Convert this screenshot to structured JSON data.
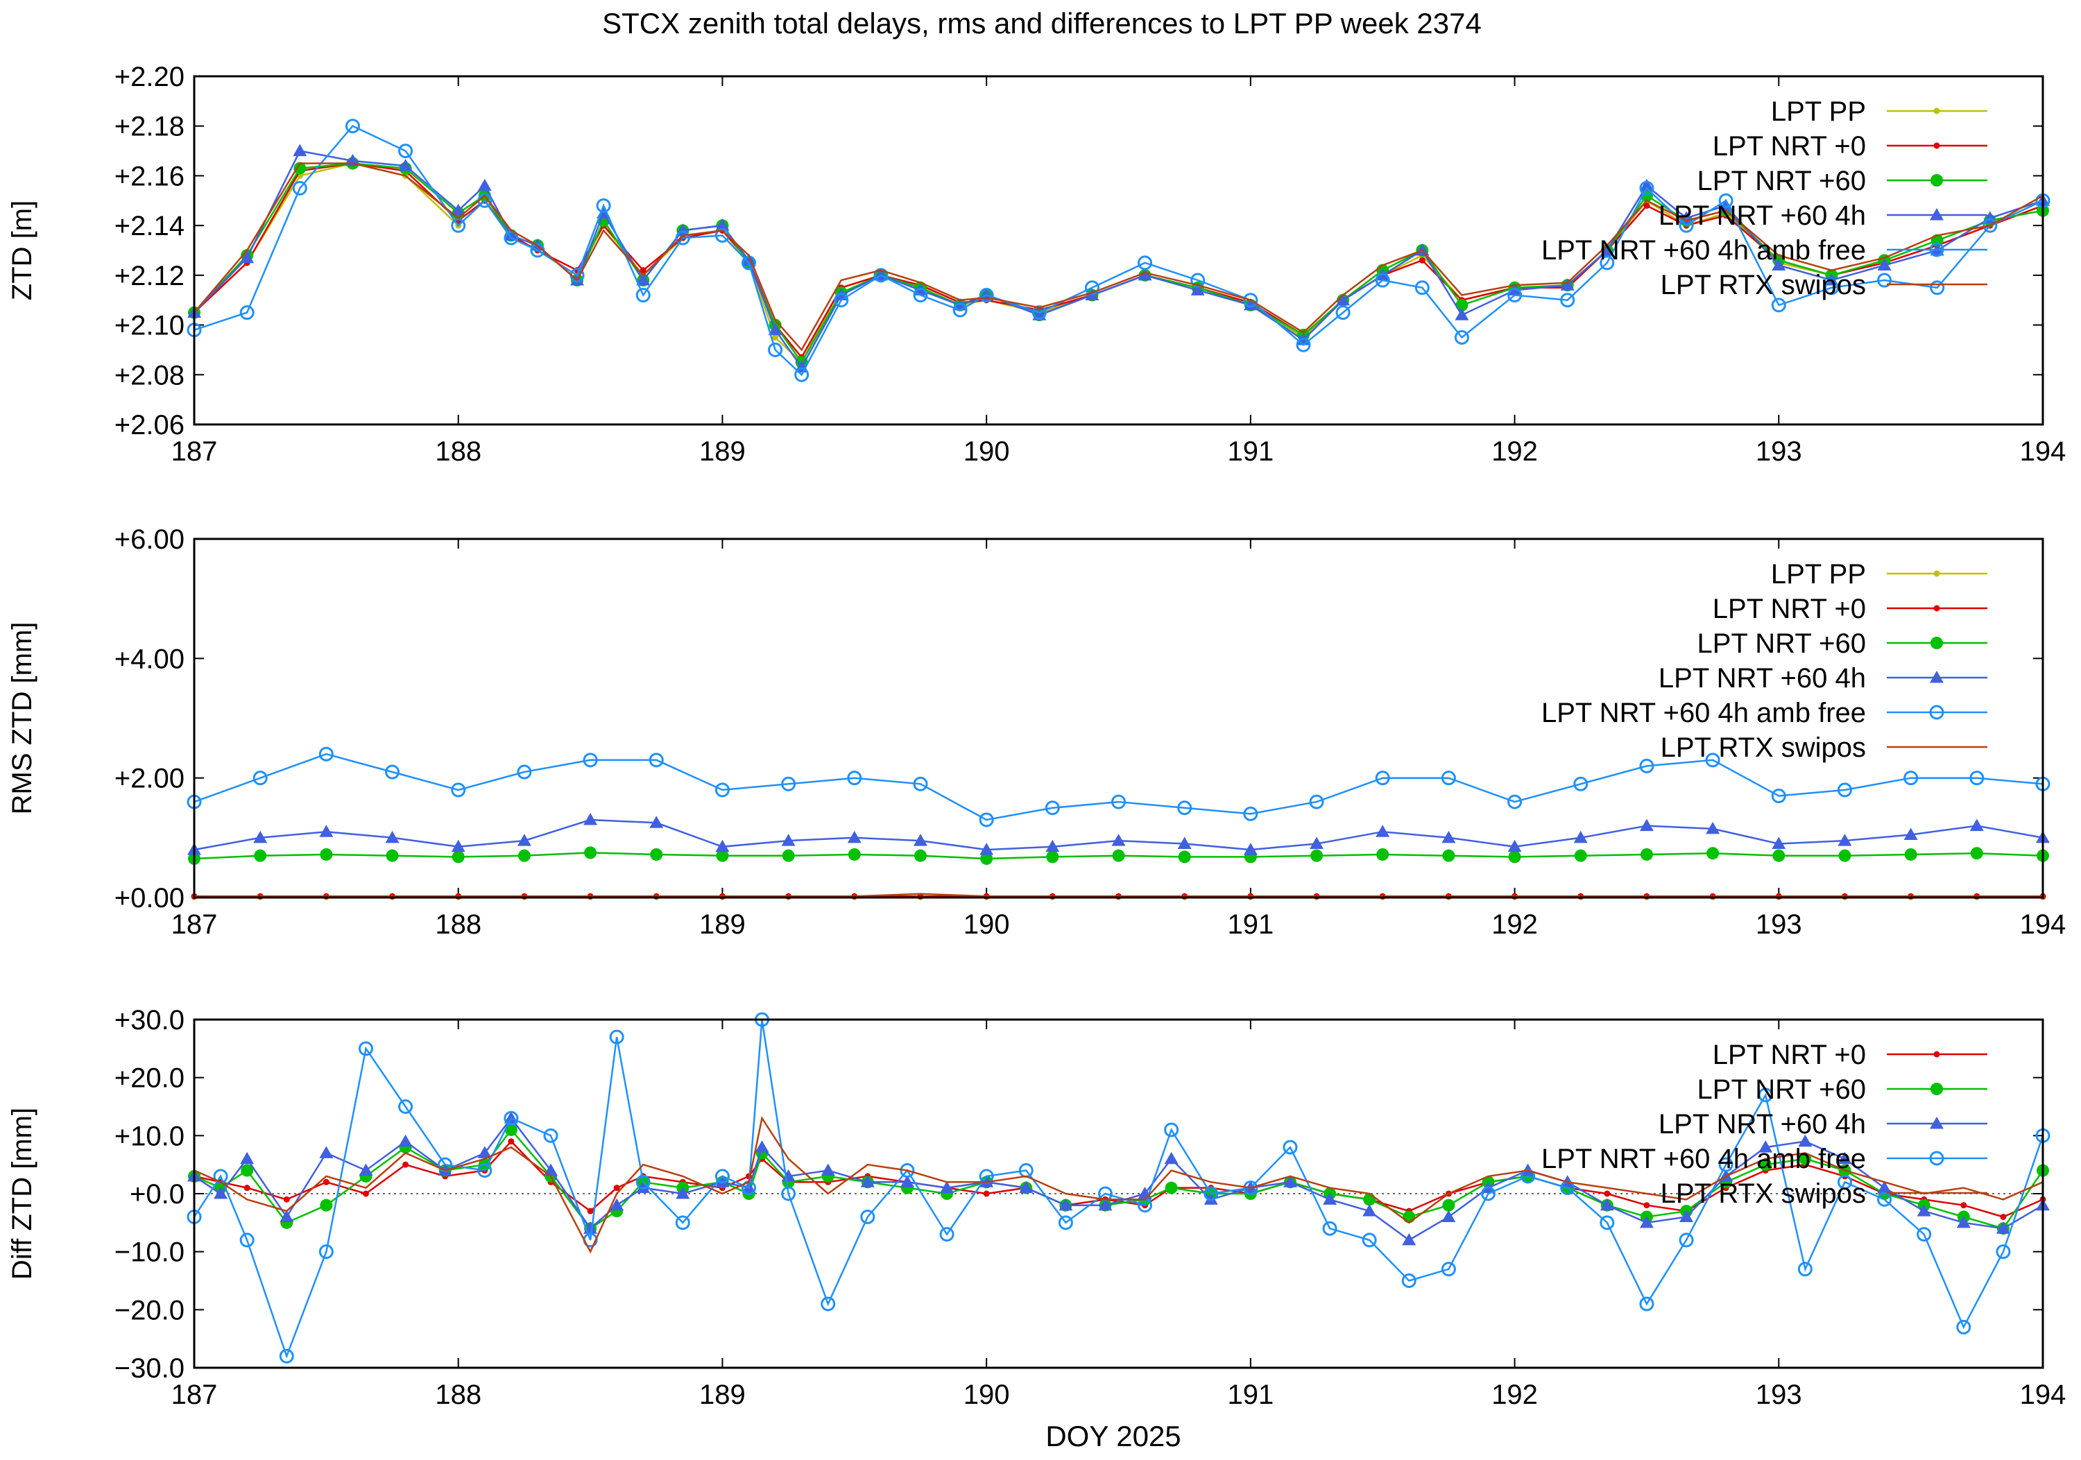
{
  "figure": {
    "title": "STCX zenith total delays, rms and differences to LPT PP week 2374",
    "xlabel": "DOY 2025",
    "x_ticks": [
      "187",
      "188",
      "189",
      "190",
      "191",
      "192",
      "193",
      "194"
    ]
  },
  "series_styles": {
    "LPT PP": {
      "color": "#c0c000",
      "marker": "dot"
    },
    "LPT NRT +0": {
      "color": "#e00000",
      "marker": "dot"
    },
    "LPT NRT +60": {
      "color": "#00c000",
      "marker": "filled-circle"
    },
    "LPT NRT +60 4h": {
      "color": "#4060e0",
      "marker": "triangle"
    },
    "LPT NRT +60 4h amb free": {
      "color": "#1e90ff",
      "marker": "open-circle"
    },
    "LPT RTX swipos": {
      "color": "#b84010",
      "marker": "none"
    }
  },
  "chart_data": [
    {
      "type": "line",
      "ylabel": "ZTD [m]",
      "xlim": [
        187,
        194
      ],
      "ylim": [
        2.06,
        2.2
      ],
      "y_ticks": [
        "+2.06",
        "+2.08",
        "+2.10",
        "+2.12",
        "+2.14",
        "+2.16",
        "+2.18",
        "+2.20"
      ],
      "legend": [
        "LPT PP",
        "LPT NRT +0",
        "LPT NRT +60",
        "LPT NRT +60 4h",
        "LPT NRT +60 4h amb free",
        "LPT RTX swipos"
      ],
      "legend_position": "top-right",
      "x": [
        187.0,
        187.2,
        187.4,
        187.6,
        187.8,
        188.0,
        188.1,
        188.2,
        188.3,
        188.45,
        188.55,
        188.7,
        188.85,
        189.0,
        189.1,
        189.2,
        189.3,
        189.45,
        189.6,
        189.75,
        189.9,
        190.0,
        190.2,
        190.4,
        190.6,
        190.8,
        191.0,
        191.2,
        191.35,
        191.5,
        191.65,
        191.8,
        192.0,
        192.2,
        192.35,
        192.5,
        192.65,
        192.8,
        193.0,
        193.2,
        193.4,
        193.6,
        193.8,
        194.0
      ],
      "series": [
        {
          "name": "LPT PP",
          "values": [
            2.105,
            2.125,
            2.16,
            2.165,
            2.16,
            2.14,
            2.15,
            2.135,
            2.13,
            2.12,
            2.14,
            2.12,
            2.135,
            2.138,
            2.125,
            2.095,
            2.085,
            2.115,
            2.12,
            2.115,
            2.108,
            2.11,
            2.105,
            2.112,
            2.12,
            2.115,
            2.108,
            2.095,
            2.11,
            2.12,
            2.128,
            2.11,
            2.115,
            2.115,
            2.13,
            2.15,
            2.14,
            2.145,
            2.125,
            2.12,
            2.125,
            2.132,
            2.14,
            2.148
          ]
        },
        {
          "name": "LPT NRT +0",
          "values": [
            2.105,
            2.125,
            2.162,
            2.165,
            2.162,
            2.142,
            2.15,
            2.136,
            2.13,
            2.122,
            2.14,
            2.122,
            2.135,
            2.138,
            2.126,
            2.1,
            2.087,
            2.115,
            2.12,
            2.116,
            2.109,
            2.11,
            2.106,
            2.112,
            2.12,
            2.115,
            2.109,
            2.096,
            2.11,
            2.12,
            2.126,
            2.11,
            2.115,
            2.115,
            2.13,
            2.148,
            2.14,
            2.144,
            2.126,
            2.12,
            2.125,
            2.132,
            2.14,
            2.148
          ]
        },
        {
          "name": "LPT NRT +60",
          "values": [
            2.105,
            2.128,
            2.163,
            2.165,
            2.163,
            2.145,
            2.152,
            2.136,
            2.132,
            2.118,
            2.142,
            2.118,
            2.138,
            2.14,
            2.125,
            2.1,
            2.085,
            2.113,
            2.12,
            2.115,
            2.108,
            2.112,
            2.104,
            2.112,
            2.12,
            2.115,
            2.108,
            2.096,
            2.11,
            2.122,
            2.13,
            2.108,
            2.115,
            2.116,
            2.13,
            2.152,
            2.142,
            2.146,
            2.126,
            2.12,
            2.126,
            2.134,
            2.142,
            2.146
          ]
        },
        {
          "name": "LPT NRT +60 4h",
          "values": [
            2.105,
            2.127,
            2.17,
            2.166,
            2.164,
            2.146,
            2.156,
            2.136,
            2.132,
            2.118,
            2.145,
            2.118,
            2.138,
            2.14,
            2.126,
            2.098,
            2.083,
            2.112,
            2.12,
            2.114,
            2.108,
            2.112,
            2.104,
            2.112,
            2.12,
            2.114,
            2.108,
            2.094,
            2.11,
            2.12,
            2.13,
            2.104,
            2.114,
            2.116,
            2.13,
            2.156,
            2.143,
            2.148,
            2.124,
            2.118,
            2.124,
            2.13,
            2.143,
            2.15
          ]
        },
        {
          "name": "LPT NRT +60 4h amb free",
          "values": [
            2.098,
            2.105,
            2.155,
            2.18,
            2.17,
            2.14,
            2.15,
            2.135,
            2.13,
            2.12,
            2.148,
            2.112,
            2.135,
            2.136,
            2.125,
            2.09,
            2.08,
            2.11,
            2.12,
            2.112,
            2.106,
            2.112,
            2.105,
            2.115,
            2.125,
            2.118,
            2.11,
            2.092,
            2.105,
            2.118,
            2.115,
            2.095,
            2.112,
            2.11,
            2.125,
            2.155,
            2.14,
            2.15,
            2.108,
            2.115,
            2.118,
            2.115,
            2.14,
            2.15
          ]
        },
        {
          "name": "LPT RTX swipos",
          "values": [
            2.105,
            2.13,
            2.165,
            2.165,
            2.16,
            2.143,
            2.152,
            2.138,
            2.132,
            2.118,
            2.138,
            2.12,
            2.136,
            2.138,
            2.128,
            2.102,
            2.09,
            2.118,
            2.122,
            2.117,
            2.11,
            2.111,
            2.107,
            2.113,
            2.121,
            2.116,
            2.11,
            2.097,
            2.112,
            2.124,
            2.13,
            2.112,
            2.116,
            2.117,
            2.132,
            2.15,
            2.142,
            2.146,
            2.128,
            2.122,
            2.127,
            2.136,
            2.14,
            2.152
          ]
        }
      ]
    },
    {
      "type": "line",
      "ylabel": "RMS ZTD [mm]",
      "xlim": [
        187,
        194
      ],
      "ylim": [
        0,
        6
      ],
      "y_ticks": [
        "+0.00",
        "+2.00",
        "+4.00",
        "+6.00"
      ],
      "legend": [
        "LPT PP",
        "LPT NRT +0",
        "LPT NRT +60",
        "LPT NRT +60 4h",
        "LPT NRT +60 4h amb free",
        "LPT RTX swipos"
      ],
      "legend_position": "top-right",
      "x": [
        187.0,
        187.25,
        187.5,
        187.75,
        188.0,
        188.25,
        188.5,
        188.75,
        189.0,
        189.25,
        189.5,
        189.75,
        190.0,
        190.25,
        190.5,
        190.75,
        191.0,
        191.25,
        191.5,
        191.75,
        192.0,
        192.25,
        192.5,
        192.75,
        193.0,
        193.25,
        193.5,
        193.75,
        194.0
      ],
      "series": [
        {
          "name": "LPT PP",
          "values": [
            0.01,
            0.01,
            0.01,
            0.01,
            0.01,
            0.01,
            0.01,
            0.01,
            0.01,
            0.01,
            0.01,
            0.01,
            0.01,
            0.01,
            0.01,
            0.01,
            0.01,
            0.01,
            0.01,
            0.01,
            0.01,
            0.01,
            0.01,
            0.01,
            0.01,
            0.01,
            0.01,
            0.01,
            0.01
          ]
        },
        {
          "name": "LPT NRT +0",
          "values": [
            0.02,
            0.02,
            0.02,
            0.02,
            0.02,
            0.02,
            0.02,
            0.02,
            0.02,
            0.02,
            0.02,
            0.02,
            0.02,
            0.02,
            0.02,
            0.02,
            0.02,
            0.02,
            0.02,
            0.02,
            0.02,
            0.02,
            0.02,
            0.02,
            0.02,
            0.02,
            0.02,
            0.02,
            0.02
          ]
        },
        {
          "name": "LPT NRT +60",
          "values": [
            0.65,
            0.7,
            0.72,
            0.7,
            0.68,
            0.7,
            0.75,
            0.72,
            0.7,
            0.7,
            0.72,
            0.7,
            0.65,
            0.68,
            0.7,
            0.68,
            0.68,
            0.7,
            0.72,
            0.7,
            0.68,
            0.7,
            0.72,
            0.74,
            0.7,
            0.7,
            0.72,
            0.74,
            0.7
          ]
        },
        {
          "name": "LPT NRT +60 4h",
          "values": [
            0.8,
            1.0,
            1.1,
            1.0,
            0.85,
            0.95,
            1.3,
            1.25,
            0.85,
            0.95,
            1.0,
            0.95,
            0.8,
            0.85,
            0.95,
            0.9,
            0.8,
            0.9,
            1.1,
            1.0,
            0.85,
            1.0,
            1.2,
            1.15,
            0.9,
            0.95,
            1.05,
            1.2,
            1.0
          ]
        },
        {
          "name": "LPT NRT +60 4h amb free",
          "values": [
            1.6,
            2.0,
            2.4,
            2.1,
            1.8,
            2.1,
            2.3,
            2.3,
            1.8,
            1.9,
            2.0,
            1.9,
            1.3,
            1.5,
            1.6,
            1.5,
            1.4,
            1.6,
            2.0,
            2.0,
            1.6,
            1.9,
            2.2,
            2.3,
            1.7,
            1.8,
            2.0,
            2.0,
            1.9
          ]
        },
        {
          "name": "LPT RTX swipos",
          "values": [
            0.02,
            0.02,
            0.02,
            0.02,
            0.02,
            0.02,
            0.02,
            0.02,
            0.02,
            0.02,
            0.02,
            0.06,
            0.02,
            0.02,
            0.02,
            0.02,
            0.02,
            0.02,
            0.02,
            0.02,
            0.02,
            0.02,
            0.02,
            0.02,
            0.02,
            0.02,
            0.02,
            0.02,
            0.02
          ]
        }
      ]
    },
    {
      "type": "line",
      "ylabel": "Diff ZTD [mm]",
      "xlim": [
        187,
        194
      ],
      "ylim": [
        -30,
        30
      ],
      "y_ticks": [
        "−30.0",
        "−20.0",
        "−10.0",
        "+0.0",
        "+10.0",
        "+20.0",
        "+30.0"
      ],
      "legend": [
        "LPT NRT +0",
        "LPT NRT +60",
        "LPT NRT +60 4h",
        "LPT NRT +60 4h amb free",
        "LPT RTX swipos"
      ],
      "legend_position": "top-right",
      "x": [
        187.0,
        187.1,
        187.2,
        187.35,
        187.5,
        187.65,
        187.8,
        187.95,
        188.1,
        188.2,
        188.35,
        188.5,
        188.6,
        188.7,
        188.85,
        189.0,
        189.1,
        189.15,
        189.25,
        189.4,
        189.55,
        189.7,
        189.85,
        190.0,
        190.15,
        190.3,
        190.45,
        190.6,
        190.7,
        190.85,
        191.0,
        191.15,
        191.3,
        191.45,
        191.6,
        191.75,
        191.9,
        192.05,
        192.2,
        192.35,
        192.5,
        192.65,
        192.8,
        192.95,
        193.1,
        193.25,
        193.4,
        193.55,
        193.7,
        193.85,
        194.0
      ],
      "series": [
        {
          "name": "LPT NRT +0",
          "values": [
            3,
            2,
            1,
            -1,
            2,
            0,
            5,
            3,
            4,
            9,
            2,
            -3,
            1,
            3,
            2,
            1,
            3,
            6,
            2,
            2,
            3,
            2,
            1,
            0,
            1,
            -2,
            -1,
            -2,
            1,
            1,
            0,
            2,
            0,
            -1,
            -3,
            0,
            2,
            3,
            1,
            0,
            -2,
            -3,
            1,
            4,
            5,
            3,
            0,
            -1,
            -2,
            -4,
            -1
          ]
        },
        {
          "name": "LPT NRT +60",
          "values": [
            3,
            1,
            4,
            -5,
            -2,
            3,
            8,
            4,
            5,
            11,
            3,
            -6,
            -3,
            2,
            1,
            2,
            0,
            7,
            2,
            3,
            2,
            1,
            0,
            2,
            1,
            -2,
            -2,
            -1,
            1,
            0,
            0,
            2,
            0,
            -1,
            -4,
            -2,
            2,
            3,
            1,
            -2,
            -4,
            -3,
            2,
            5,
            6,
            4,
            0,
            -2,
            -4,
            -6,
            4
          ]
        },
        {
          "name": "LPT NRT +60 4h",
          "values": [
            3,
            0,
            6,
            -4,
            7,
            4,
            9,
            4,
            7,
            13,
            4,
            -6,
            -2,
            1,
            0,
            2,
            1,
            8,
            3,
            4,
            2,
            2,
            1,
            2,
            1,
            -2,
            -2,
            0,
            6,
            -1,
            1,
            2,
            -1,
            -3,
            -8,
            -4,
            1,
            4,
            2,
            -2,
            -5,
            -4,
            3,
            8,
            9,
            6,
            1,
            -3,
            -5,
            -6,
            -2
          ]
        },
        {
          "name": "LPT NRT +60 4h amb free",
          "values": [
            -4,
            3,
            -8,
            -28,
            -10,
            25,
            15,
            5,
            4,
            13,
            10,
            -8,
            27,
            2,
            -5,
            3,
            1,
            30,
            0,
            -19,
            -4,
            4,
            -7,
            3,
            4,
            -5,
            0,
            -2,
            11,
            0,
            1,
            8,
            -6,
            -8,
            -15,
            -13,
            0,
            3,
            1,
            -5,
            -19,
            -8,
            5,
            17,
            -13,
            2,
            -1,
            -7,
            -23,
            -10,
            10
          ]
        },
        {
          "name": "LPT RTX swipos",
          "values": [
            4,
            2,
            -1,
            -3,
            3,
            1,
            7,
            4,
            6,
            8,
            3,
            -10,
            0,
            5,
            3,
            0,
            2,
            13,
            6,
            0,
            5,
            4,
            2,
            2,
            3,
            0,
            -1,
            -1,
            4,
            2,
            1,
            3,
            1,
            0,
            -5,
            0,
            3,
            4,
            2,
            1,
            0,
            -1,
            3,
            6,
            7,
            4,
            2,
            0,
            1,
            -1,
            2
          ]
        }
      ]
    }
  ]
}
